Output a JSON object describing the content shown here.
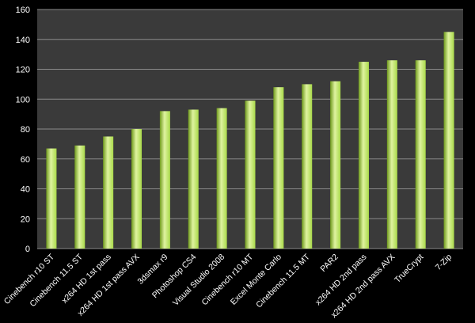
{
  "chart_data": {
    "type": "bar",
    "title": "",
    "xlabel": "",
    "ylabel": "",
    "ylim": [
      0,
      160
    ],
    "ytick_step": 20,
    "grid": true,
    "legend": "none",
    "colors": {
      "background": "#000000",
      "plot_area": "#3a3a3a",
      "gridline": "#8a8a8a",
      "bar_light": "#dff3a0",
      "bar_mid": "#a9d94a",
      "bar_dark": "#6f9a1c"
    },
    "categories": [
      "Cinebench r10 ST",
      "Cinebench 11.5 ST",
      "x264 HD 1st pass",
      "x264 HD 1st pass AVX",
      "3dsmax r9",
      "Photoshop CS4",
      "Visual Studio 2008",
      "Cinebench r10 MT",
      "Excel Monte Carlo",
      "Cinebench 11.5 MT",
      "PAR2",
      "x264 HD 2nd pass",
      "x264 HD 2nd pass AVX",
      "TrueCrypt",
      "7-Zip"
    ],
    "values": [
      67,
      69,
      75,
      80,
      92,
      93,
      94,
      99,
      108,
      110,
      112,
      125,
      126,
      126,
      145
    ]
  }
}
